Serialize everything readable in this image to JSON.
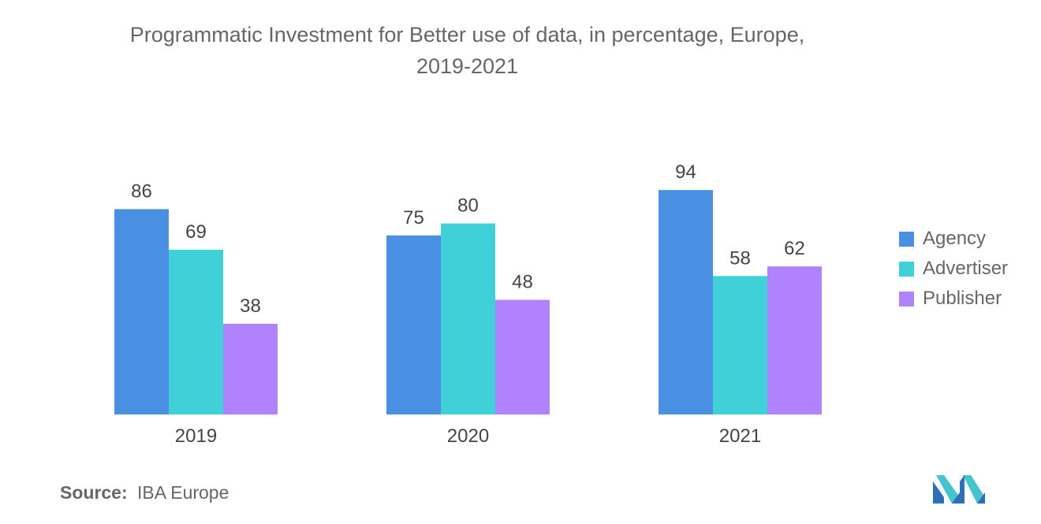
{
  "chart_data": {
    "type": "bar",
    "title_line1": "Programmatic Investment for Better use of data, in percentage, Europe,",
    "title_line2": "2019-2021",
    "categories": [
      "2019",
      "2020",
      "2021"
    ],
    "series": [
      {
        "name": "Agency",
        "values": [
          86,
          75,
          94
        ],
        "color": "#4a90e2"
      },
      {
        "name": "Advertiser",
        "values": [
          69,
          80,
          58
        ],
        "color": "#40d0d8"
      },
      {
        "name": "Publisher",
        "values": [
          38,
          48,
          62
        ],
        "color": "#b083fc"
      }
    ],
    "xlabel": "",
    "ylabel": "",
    "ylim": [
      0,
      100
    ],
    "grid": false,
    "legend_position": "right"
  },
  "source": {
    "label": "Source:",
    "value": "IBA Europe"
  },
  "logo_icon": "mordor-intelligence-logo-icon"
}
